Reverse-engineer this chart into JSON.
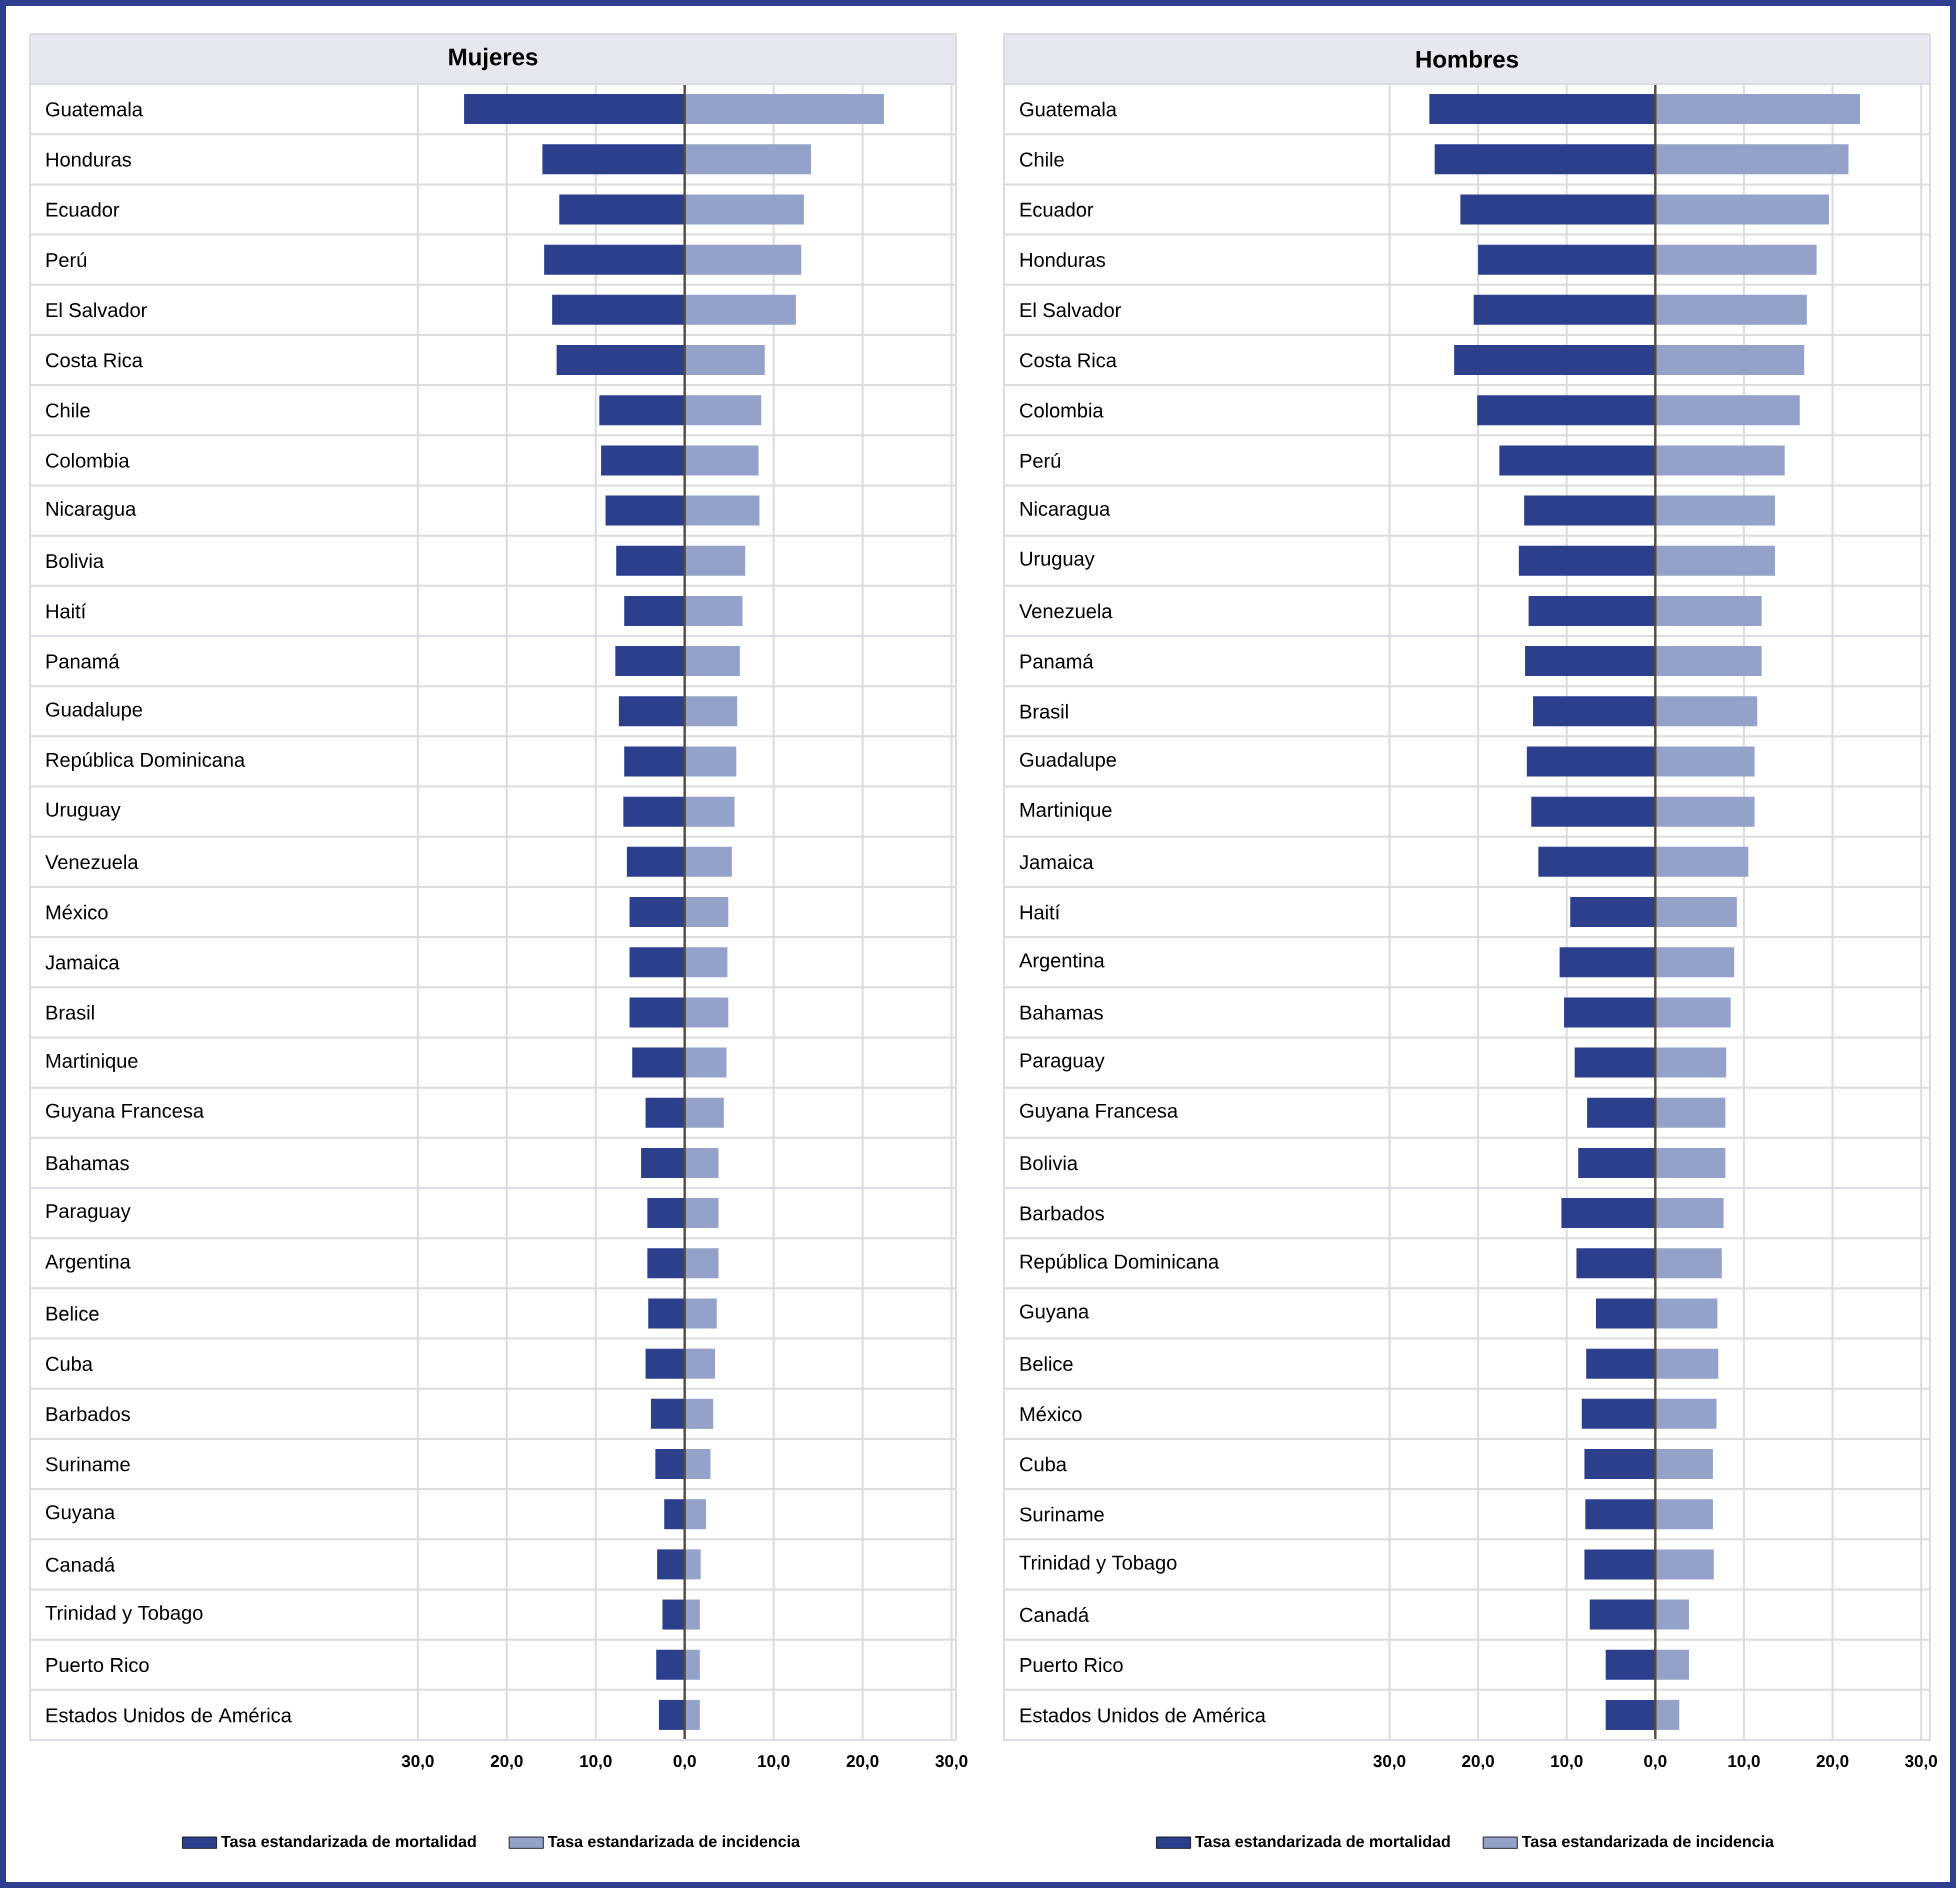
{
  "chart_data": [
    {
      "type": "bar",
      "orientation": "horizontal",
      "title": "Mujeres",
      "categories": [
        "Guatemala",
        "Honduras",
        "Ecuador",
        "Perú",
        "El Salvador",
        "Costa Rica",
        "Chile",
        "Colombia",
        "Nicaragua",
        "Bolivia",
        "Haití",
        "Panamá",
        "Guadalupe",
        "República Dominicana",
        "Uruguay",
        "Venezuela",
        "México",
        "Jamaica",
        "Brasil",
        "Martinique",
        "Guyana Francesa",
        "Bahamas",
        "Paraguay",
        "Argentina",
        "Belice",
        "Cuba",
        "Barbados",
        "Suriname",
        "Guyana",
        "Canadá",
        "Trinidad y Tobago",
        "Puerto Rico",
        "Estados Unidos de América"
      ],
      "series": [
        {
          "name": "Tasa estandarizada de mortalidad",
          "color": "#2b3f8c",
          "values": [
            -24.8,
            -16.0,
            -14.1,
            -15.8,
            -14.9,
            -14.4,
            -9.6,
            -9.4,
            -8.9,
            -7.7,
            -6.8,
            -7.8,
            -7.4,
            -6.8,
            -6.9,
            -6.5,
            -6.2,
            -6.2,
            -6.2,
            -5.9,
            -4.4,
            -4.9,
            -4.2,
            -4.2,
            -4.1,
            -4.4,
            -3.8,
            -3.3,
            -2.3,
            -3.1,
            -2.5,
            -3.2,
            -2.9
          ]
        },
        {
          "name": "Tasa estandarizada de incidencia",
          "color": "#94a1c9",
          "values": [
            22.4,
            14.2,
            13.4,
            13.1,
            12.5,
            9.0,
            8.6,
            8.3,
            8.4,
            6.8,
            6.5,
            6.2,
            5.9,
            5.8,
            5.6,
            5.3,
            4.9,
            4.8,
            4.9,
            4.7,
            4.4,
            3.8,
            3.8,
            3.8,
            3.6,
            3.4,
            3.2,
            2.9,
            2.4,
            1.8,
            1.7,
            1.7,
            1.7
          ]
        }
      ],
      "xlim": [
        -73.6,
        30.5
      ],
      "stacked": true,
      "xticks": [
        {
          "value": -30,
          "label": "30,0"
        },
        {
          "value": -20,
          "label": "20,0"
        },
        {
          "value": -10,
          "label": "10,0"
        },
        {
          "value": 0,
          "label": "0,0"
        },
        {
          "value": 10,
          "label": "10,0"
        },
        {
          "value": 20,
          "label": "20,0"
        },
        {
          "value": 30,
          "label": "30,0"
        }
      ],
      "grid": "x",
      "legend": "bottom"
    },
    {
      "type": "bar",
      "orientation": "horizontal",
      "title": "Hombres",
      "categories": [
        "Guatemala",
        "Chile",
        "Ecuador",
        "Honduras",
        "El Salvador",
        "Costa Rica",
        "Colombia",
        "Perú",
        "Nicaragua",
        "Uruguay",
        "Venezuela",
        "Panamá",
        "Brasil",
        "Guadalupe",
        "Martinique",
        "Jamaica",
        "Haití",
        "Argentina",
        "Bahamas",
        "Paraguay",
        "Guyana Francesa",
        "Bolivia",
        "Barbados",
        "República Dominicana",
        "Guyana",
        "Belice",
        "México",
        "Cuba",
        "Suriname",
        "Trinidad y Tobago",
        "Canadá",
        "Puerto Rico",
        "Estados Unidos de América"
      ],
      "series": [
        {
          "name": "Tasa estandarizada de mortalidad",
          "color": "#2b3f8c",
          "values": [
            -25.5,
            -24.9,
            -22.0,
            -20.0,
            -20.5,
            -22.7,
            -20.1,
            -17.6,
            -14.8,
            -15.4,
            -14.3,
            -14.7,
            -13.8,
            -14.5,
            -14.0,
            -13.2,
            -9.6,
            -10.8,
            -10.3,
            -9.1,
            -7.7,
            -8.7,
            -10.6,
            -8.9,
            -6.7,
            -7.8,
            -8.3,
            -8.0,
            -7.9,
            -8.0,
            -7.4,
            -5.6,
            -5.6
          ]
        },
        {
          "name": "Tasa estandarizada de incidencia",
          "color": "#94a1c9",
          "values": [
            23.1,
            21.8,
            19.6,
            18.2,
            17.1,
            16.8,
            16.3,
            14.6,
            13.5,
            13.5,
            12.0,
            12.0,
            11.5,
            11.2,
            11.2,
            10.5,
            9.2,
            8.9,
            8.5,
            8.0,
            7.9,
            7.9,
            7.7,
            7.5,
            7.0,
            7.1,
            6.9,
            6.5,
            6.5,
            6.6,
            3.8,
            3.8,
            2.7
          ]
        }
      ],
      "xlim": [
        -73.5,
        31
      ],
      "stacked": true,
      "xticks": [
        {
          "value": -30,
          "label": "30,0"
        },
        {
          "value": -20,
          "label": "20,0"
        },
        {
          "value": -10,
          "label": "10,0"
        },
        {
          "value": 0,
          "label": "0,0"
        },
        {
          "value": 10,
          "label": "10,0"
        },
        {
          "value": 20,
          "label": "20,0"
        },
        {
          "value": 30,
          "label": "30,0"
        }
      ],
      "grid": "x",
      "legend": "bottom"
    }
  ]
}
